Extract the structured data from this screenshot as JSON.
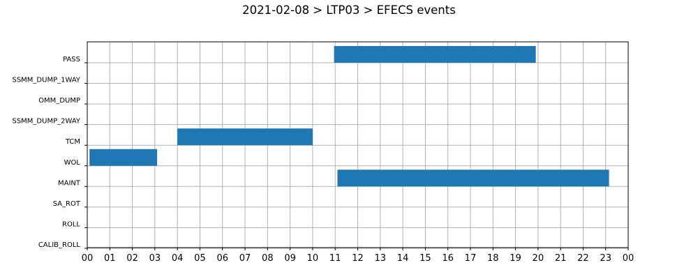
{
  "chart_data": {
    "type": "bar",
    "orientation": "horizontal-timeline",
    "title": "2021-02-08 > LTP03 > EFECS events",
    "xlabel": "",
    "ylabel": "",
    "grid": true,
    "xlim": [
      0,
      24
    ],
    "x_ticks": [
      "00",
      "01",
      "02",
      "03",
      "04",
      "05",
      "06",
      "07",
      "08",
      "09",
      "10",
      "11",
      "12",
      "13",
      "14",
      "15",
      "16",
      "17",
      "18",
      "19",
      "20",
      "21",
      "22",
      "23",
      "00"
    ],
    "categories": [
      "PASS",
      "SSMM_DUMP_1WAY",
      "OMM_DUMP",
      "SSMM_DUMP_2WAY",
      "TCM",
      "WOL",
      "MAINT",
      "SA_ROT",
      "ROLL",
      "CALIB_ROLL"
    ],
    "events": [
      {
        "category": "PASS",
        "start": 10.95,
        "end": 19.9
      },
      {
        "category": "TCM",
        "start": 4.0,
        "end": 10.0
      },
      {
        "category": "WOL",
        "start": 0.1,
        "end": 3.1
      },
      {
        "category": "MAINT",
        "start": 11.1,
        "end": 23.15
      }
    ],
    "bar_color": "#1f77b4",
    "grid_color": "#b0b0b0"
  }
}
